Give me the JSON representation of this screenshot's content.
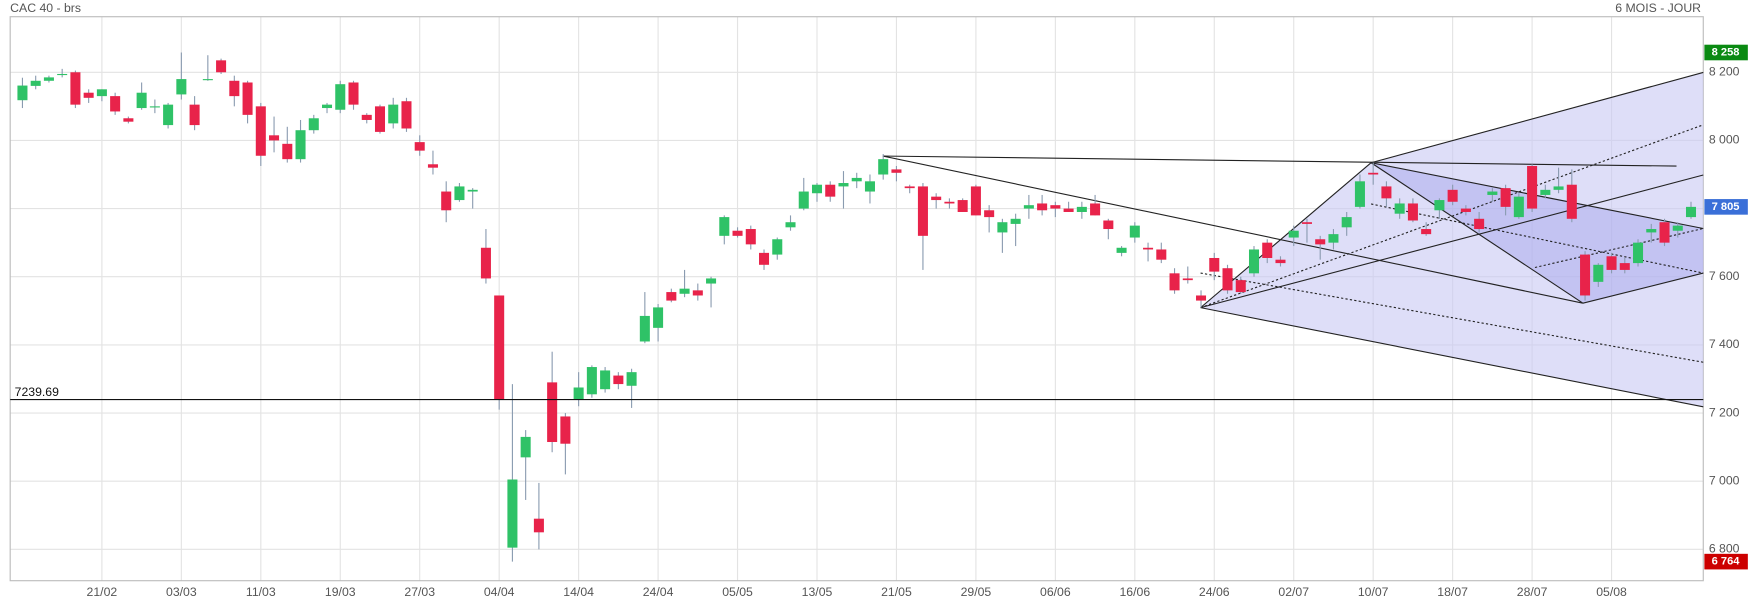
{
  "chart_data": {
    "type": "candlestick",
    "title": "CAC 40 - brs",
    "subtitle": "6 MOIS - JOUR",
    "up_color": "#2fc267",
    "down_color": "#e8234a",
    "grid": true,
    "ylim": [
      6708,
      8363
    ],
    "yticks": [
      {
        "value": 6800,
        "label": "6 800"
      },
      {
        "value": 7000,
        "label": "7 000"
      },
      {
        "value": 7200,
        "label": "7 200"
      },
      {
        "value": 7400,
        "label": "7 400"
      },
      {
        "value": 7600,
        "label": "7 600"
      },
      {
        "value": 7800,
        "label": "7 800"
      },
      {
        "value": 8000,
        "label": "8 000"
      },
      {
        "value": 8200,
        "label": "8 200"
      }
    ],
    "hline": 7239.69,
    "price_labels": [
      {
        "value": 8258,
        "label": "8 258",
        "color": "#0a8a12"
      },
      {
        "value": 7805,
        "label": "7 805",
        "color": "#3a6fd8"
      },
      {
        "value": 6764,
        "label": "6 764",
        "color": "#cc0000"
      }
    ],
    "categories": [
      null,
      null,
      null,
      null,
      null,
      null,
      "21/02",
      null,
      null,
      null,
      null,
      null,
      "03/03",
      null,
      null,
      null,
      null,
      null,
      "11/03",
      null,
      null,
      null,
      null,
      null,
      "19/03",
      null,
      null,
      null,
      null,
      null,
      "27/03",
      null,
      null,
      null,
      null,
      null,
      "04/04",
      null,
      null,
      null,
      null,
      null,
      "14/04",
      null,
      null,
      null,
      null,
      null,
      "24/04",
      null,
      null,
      null,
      null,
      null,
      "05/05",
      null,
      null,
      null,
      null,
      null,
      "13/05",
      null,
      null,
      null,
      null,
      null,
      "21/05",
      null,
      null,
      null,
      null,
      null,
      "29/05",
      null,
      null,
      null,
      null,
      null,
      "06/06",
      null,
      null,
      null,
      null,
      null,
      "16/06",
      null,
      null,
      null,
      null,
      null,
      "24/06",
      null,
      null,
      null,
      null,
      null,
      "02/07",
      null,
      null,
      null,
      null,
      null,
      "10/07",
      null,
      null,
      null,
      null,
      null,
      "18/07",
      null,
      null,
      null,
      null,
      null,
      "28/07",
      null,
      null,
      null,
      null,
      null,
      "05/08",
      null,
      null,
      null,
      null,
      null,
      null
    ],
    "open": [
      8118,
      8160,
      8175,
      8195,
      8200,
      8140,
      8130,
      8130,
      8065,
      8095,
      8100,
      8045,
      8135,
      8105,
      8180,
      8235,
      8175,
      8170,
      8100,
      8015,
      7990,
      7945,
      8030,
      8095,
      8090,
      8170,
      8075,
      8100,
      8050,
      8115,
      7995,
      7930,
      7850,
      7825,
      7850,
      7685,
      7545,
      6805,
      7070,
      6890,
      7290,
      7190,
      7240,
      7255,
      7270,
      7310,
      7280,
      7410,
      7450,
      7555,
      7550,
      7560,
      7580,
      7720,
      7735,
      7740,
      7670,
      7665,
      7745,
      7800,
      7845,
      7870,
      7865,
      7880,
      7850,
      7900,
      7915,
      7865,
      7865,
      7835,
      7820,
      7825,
      7865,
      7795,
      7730,
      7755,
      7800,
      7815,
      7810,
      7800,
      7790,
      7815,
      7765,
      7670,
      7715,
      7685,
      7680,
      7610,
      7595,
      7545,
      7655,
      7625,
      7590,
      7610,
      7700,
      7650,
      7715,
      7760,
      7710,
      7700,
      7745,
      7805,
      7905,
      7865,
      7785,
      7815,
      7740,
      7795,
      7855,
      7800,
      7770,
      7840,
      7860,
      7775,
      7925,
      7840,
      7855,
      7870,
      7665,
      7585,
      7660,
      7640,
      7640,
      7730,
      7760,
      7735,
      7775
    ],
    "high": [
      8184,
      8190,
      8190,
      8210,
      8205,
      8150,
      8150,
      8140,
      8070,
      8170,
      8120,
      8110,
      8258,
      8130,
      8250,
      8240,
      8190,
      8175,
      8110,
      8070,
      8040,
      8060,
      8075,
      8110,
      8175,
      8175,
      8080,
      8105,
      8125,
      8125,
      8015,
      7970,
      7880,
      7875,
      7860,
      7740,
      7545,
      7285,
      7150,
      6995,
      7380,
      7200,
      7320,
      7340,
      7335,
      7320,
      7330,
      7555,
      7520,
      7565,
      7620,
      7580,
      7600,
      7780,
      7745,
      7750,
      7680,
      7715,
      7780,
      7890,
      7875,
      7880,
      7910,
      7905,
      7900,
      7960,
      7925,
      7870,
      7875,
      7845,
      7830,
      7830,
      7870,
      7810,
      7770,
      7785,
      7840,
      7840,
      7820,
      7820,
      7820,
      7840,
      7770,
      7690,
      7760,
      7700,
      7700,
      7625,
      7630,
      7560,
      7670,
      7635,
      7600,
      7690,
      7710,
      7660,
      7750,
      7770,
      7720,
      7740,
      7790,
      7900,
      7935,
      7880,
      7830,
      7830,
      7760,
      7830,
      7870,
      7810,
      7790,
      7860,
      7870,
      7845,
      7930,
      7870,
      7920,
      7915,
      7675,
      7640,
      7670,
      7655,
      7710,
      7755,
      7770,
      7760,
      7820
    ],
    "low": [
      8095,
      8150,
      8170,
      8185,
      8095,
      8110,
      8115,
      8075,
      8050,
      8090,
      8080,
      8035,
      8120,
      8030,
      8175,
      8195,
      8100,
      8050,
      7925,
      7965,
      7935,
      7935,
      8020,
      8080,
      8080,
      8090,
      8050,
      8020,
      8035,
      8025,
      7955,
      7900,
      7760,
      7820,
      7800,
      7580,
      7210,
      6764,
      6945,
      6800,
      7085,
      7020,
      7220,
      7245,
      7260,
      7270,
      7215,
      7405,
      7410,
      7525,
      7540,
      7530,
      7510,
      7695,
      7715,
      7680,
      7620,
      7650,
      7735,
      7795,
      7820,
      7820,
      7800,
      7860,
      7815,
      7885,
      7880,
      7845,
      7620,
      7800,
      7800,
      7790,
      7780,
      7730,
      7670,
      7690,
      7770,
      7780,
      7775,
      7790,
      7770,
      7780,
      7710,
      7660,
      7700,
      7645,
      7640,
      7550,
      7580,
      7510,
      7590,
      7550,
      7550,
      7600,
      7640,
      7630,
      7690,
      7700,
      7650,
      7680,
      7720,
      7800,
      7870,
      7805,
      7770,
      7760,
      7720,
      7770,
      7810,
      7780,
      7730,
      7820,
      7780,
      7770,
      7790,
      7830,
      7845,
      7760,
      7530,
      7570,
      7610,
      7610,
      7630,
      7700,
      7690,
      7715,
      7770
    ],
    "close": [
      8161,
      8175,
      8185,
      8195,
      8105,
      8125,
      8150,
      8085,
      8055,
      8140,
      8100,
      8105,
      8180,
      8045,
      8180,
      8200,
      8130,
      8075,
      7955,
      8000,
      7945,
      8030,
      8065,
      8105,
      8165,
      8105,
      8060,
      8025,
      8105,
      8035,
      7970,
      7920,
      7795,
      7865,
      7855,
      7595,
      7240,
      7005,
      7130,
      6850,
      7115,
      7110,
      7275,
      7335,
      7325,
      7285,
      7320,
      7485,
      7510,
      7530,
      7565,
      7545,
      7595,
      7775,
      7720,
      7695,
      7635,
      7710,
      7760,
      7850,
      7870,
      7835,
      7875,
      7890,
      7880,
      7945,
      7905,
      7860,
      7720,
      7825,
      7815,
      7790,
      7780,
      7775,
      7760,
      7770,
      7810,
      7795,
      7800,
      7790,
      7805,
      7780,
      7740,
      7685,
      7750,
      7680,
      7650,
      7560,
      7590,
      7530,
      7615,
      7560,
      7555,
      7680,
      7655,
      7640,
      7735,
      7755,
      7695,
      7725,
      7775,
      7880,
      7900,
      7830,
      7815,
      7765,
      7725,
      7825,
      7820,
      7790,
      7740,
      7850,
      7805,
      7835,
      7800,
      7855,
      7865,
      7770,
      7545,
      7635,
      7620,
      7620,
      7700,
      7740,
      7700,
      7750,
      7805
    ]
  }
}
